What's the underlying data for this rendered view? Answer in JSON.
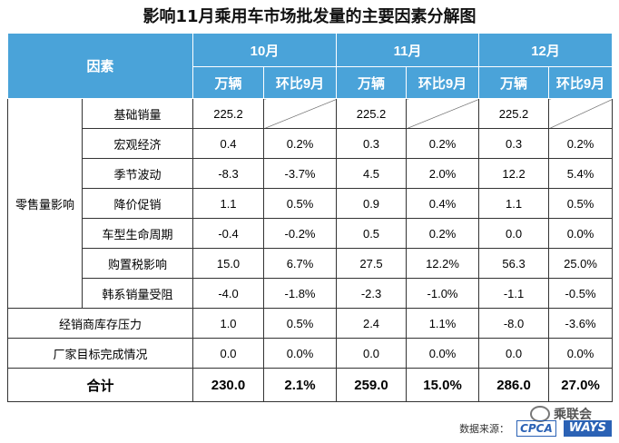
{
  "title": "影响11月乘用车市场批发量的主要因素分解图",
  "header": {
    "factor_label": "因素",
    "months": [
      "10月",
      "11月",
      "12月"
    ],
    "unit_label": "万辆",
    "mom_label": "环比9月"
  },
  "group_retail_label": "零售量影响",
  "rows": [
    {
      "label": "基础销量",
      "v10": "225.2",
      "p10": "",
      "v11": "225.2",
      "p11": "",
      "v12": "225.2",
      "p12": ""
    },
    {
      "label": "宏观经济",
      "v10": "0.4",
      "p10": "0.2%",
      "v11": "0.3",
      "p11": "0.2%",
      "v12": "0.3",
      "p12": "0.2%"
    },
    {
      "label": "季节波动",
      "v10": "-8.3",
      "p10": "-3.7%",
      "v11": "4.5",
      "p11": "2.0%",
      "v12": "12.2",
      "p12": "5.4%"
    },
    {
      "label": "降价促销",
      "v10": "1.1",
      "p10": "0.5%",
      "v11": "0.9",
      "p11": "0.4%",
      "v12": "1.1",
      "p12": "0.5%"
    },
    {
      "label": "车型生命周期",
      "v10": "-0.4",
      "p10": "-0.2%",
      "v11": "0.5",
      "p11": "0.2%",
      "v12": "0.0",
      "p12": "0.0%"
    },
    {
      "label": "购置税影响",
      "v10": "15.0",
      "p10": "6.7%",
      "v11": "27.5",
      "p11": "12.2%",
      "v12": "56.3",
      "p12": "25.0%"
    },
    {
      "label": "韩系销量受阻",
      "v10": "-4.0",
      "p10": "-1.8%",
      "v11": "-2.3",
      "p11": "-1.0%",
      "v12": "-1.1",
      "p12": "-0.5%"
    }
  ],
  "dealer_row": {
    "label": "经销商库存压力",
    "v10": "1.0",
    "p10": "0.5%",
    "v11": "2.4",
    "p11": "1.1%",
    "v12": "-8.0",
    "p12": "-3.6%"
  },
  "maker_row": {
    "label": "厂家目标完成情况",
    "v10": "0.0",
    "p10": "0.0%",
    "v11": "0.0",
    "p11": "0.0%",
    "v12": "0.0",
    "p12": "0.0%"
  },
  "total_row": {
    "label": "合计",
    "v10": "230.0",
    "p10": "2.1%",
    "v11": "259.0",
    "p11": "15.0%",
    "v12": "286.0",
    "p12": "27.0%"
  },
  "footer": {
    "source_label": "数据来源：",
    "logo_cpca": "CPCA",
    "logo_ways": "WAYS"
  },
  "watermark": {
    "text": "乘联会"
  },
  "colors": {
    "header_bg": "#4aa3d9",
    "header_text": "#ffffff",
    "logo_blue": "#2b62b5"
  }
}
